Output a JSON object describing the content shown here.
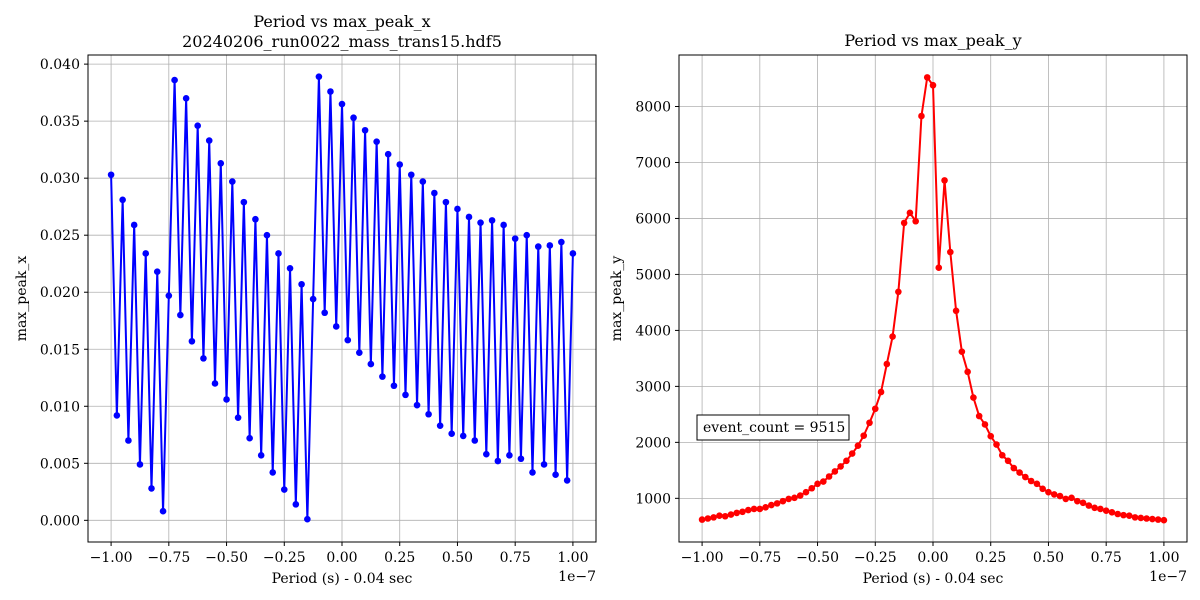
{
  "chart_data": [
    {
      "type": "line",
      "title": "Period vs max_peak_x\n20240206_run0022_mass_trans15.hdf5",
      "xlabel": "Period (s) - 0.04 sec",
      "ylabel": "max_peak_x",
      "x_offset_label": "1e−7",
      "xlim": [
        -1.1,
        1.1
      ],
      "ylim": [
        -0.0019,
        0.0408
      ],
      "grid": true,
      "color": "#0000ff",
      "x_ticks": [
        -1.0,
        -0.75,
        -0.5,
        -0.25,
        0.0,
        0.25,
        0.5,
        0.75,
        1.0
      ],
      "x_tick_labels": [
        "−1.00",
        "−0.75",
        "−0.50",
        "−0.25",
        "0.00",
        "0.25",
        "0.50",
        "0.75",
        "1.00"
      ],
      "y_ticks": [
        0.0,
        0.005,
        0.01,
        0.015,
        0.02,
        0.025,
        0.03,
        0.035,
        0.04
      ],
      "y_tick_labels": [
        "0.000",
        "0.005",
        "0.010",
        "0.015",
        "0.020",
        "0.025",
        "0.030",
        "0.035",
        "0.040"
      ],
      "x": [
        -1.0,
        -0.975,
        -0.95,
        -0.925,
        -0.9,
        -0.875,
        -0.85,
        -0.825,
        -0.8,
        -0.775,
        -0.75,
        -0.725,
        -0.7,
        -0.675,
        -0.65,
        -0.625,
        -0.6,
        -0.575,
        -0.55,
        -0.525,
        -0.5,
        -0.475,
        -0.45,
        -0.425,
        -0.4,
        -0.375,
        -0.35,
        -0.325,
        -0.3,
        -0.275,
        -0.25,
        -0.225,
        -0.2,
        -0.175,
        -0.15,
        -0.125,
        -0.1,
        -0.075,
        -0.05,
        -0.025,
        0.0,
        0.025,
        0.05,
        0.075,
        0.1,
        0.125,
        0.15,
        0.175,
        0.2,
        0.225,
        0.25,
        0.275,
        0.3,
        0.325,
        0.35,
        0.375,
        0.4,
        0.425,
        0.45,
        0.475,
        0.5,
        0.525,
        0.55,
        0.575,
        0.6,
        0.625,
        0.65,
        0.675,
        0.7,
        0.725,
        0.75,
        0.775,
        0.8,
        0.825,
        0.85,
        0.875,
        0.9,
        0.925,
        0.95,
        0.975,
        1.0
      ],
      "values": [
        0.0303,
        0.0092,
        0.0281,
        0.007,
        0.0259,
        0.0049,
        0.0234,
        0.0028,
        0.0218,
        0.0008,
        0.0197,
        0.0386,
        0.018,
        0.037,
        0.0157,
        0.0346,
        0.0142,
        0.0333,
        0.012,
        0.0313,
        0.0106,
        0.0297,
        0.009,
        0.0279,
        0.0072,
        0.0264,
        0.0057,
        0.025,
        0.0042,
        0.0234,
        0.0027,
        0.0221,
        0.0014,
        0.0207,
        0.0001,
        0.0194,
        0.0389,
        0.0182,
        0.0376,
        0.017,
        0.0365,
        0.0158,
        0.0353,
        0.0147,
        0.0342,
        0.0137,
        0.0332,
        0.0126,
        0.0321,
        0.0118,
        0.0312,
        0.011,
        0.0303,
        0.0101,
        0.0297,
        0.0093,
        0.0287,
        0.0083,
        0.0279,
        0.0076,
        0.0273,
        0.0074,
        0.0266,
        0.007,
        0.0261,
        0.0058,
        0.0263,
        0.0052,
        0.0259,
        0.0057,
        0.0247,
        0.0054,
        0.025,
        0.0042,
        0.024,
        0.0049,
        0.0241,
        0.004,
        0.0244,
        0.0035,
        0.0234
      ]
    },
    {
      "type": "line",
      "title": "Period vs max_peak_y",
      "xlabel": "Period (s) - 0.04 sec",
      "ylabel": "max_peak_y",
      "x_offset_label": "1e−7",
      "xlim": [
        -1.1,
        1.1
      ],
      "ylim": [
        220,
        8920
      ],
      "grid": true,
      "color": "#ff0000",
      "annotation": "event_count = 9515",
      "x_ticks": [
        -1.0,
        -0.75,
        -0.5,
        -0.25,
        0.0,
        0.25,
        0.5,
        0.75,
        1.0
      ],
      "x_tick_labels": [
        "−1.00",
        "−0.75",
        "−0.50",
        "−0.25",
        "0.00",
        "0.25",
        "0.50",
        "0.75",
        "1.00"
      ],
      "y_ticks": [
        1000,
        2000,
        3000,
        4000,
        5000,
        6000,
        7000,
        8000
      ],
      "y_tick_labels": [
        "1000",
        "2000",
        "3000",
        "4000",
        "5000",
        "6000",
        "7000",
        "8000"
      ],
      "x": [
        -1.0,
        -0.975,
        -0.95,
        -0.925,
        -0.9,
        -0.875,
        -0.85,
        -0.825,
        -0.8,
        -0.775,
        -0.75,
        -0.725,
        -0.7,
        -0.675,
        -0.65,
        -0.625,
        -0.6,
        -0.575,
        -0.55,
        -0.525,
        -0.5,
        -0.475,
        -0.45,
        -0.425,
        -0.4,
        -0.375,
        -0.35,
        -0.325,
        -0.3,
        -0.275,
        -0.25,
        -0.225,
        -0.2,
        -0.175,
        -0.15,
        -0.125,
        -0.1,
        -0.075,
        -0.05,
        -0.025,
        0.0,
        0.025,
        0.05,
        0.075,
        0.1,
        0.125,
        0.15,
        0.175,
        0.2,
        0.225,
        0.25,
        0.275,
        0.3,
        0.325,
        0.35,
        0.375,
        0.4,
        0.425,
        0.45,
        0.475,
        0.5,
        0.525,
        0.55,
        0.575,
        0.6,
        0.625,
        0.65,
        0.675,
        0.7,
        0.725,
        0.75,
        0.775,
        0.8,
        0.825,
        0.85,
        0.875,
        0.9,
        0.925,
        0.95,
        0.975,
        1.0
      ],
      "values": [
        620,
        640,
        660,
        690,
        680,
        710,
        740,
        760,
        790,
        810,
        810,
        840,
        880,
        910,
        950,
        990,
        1010,
        1050,
        1110,
        1180,
        1260,
        1300,
        1390,
        1480,
        1570,
        1670,
        1800,
        1940,
        2120,
        2350,
        2600,
        2900,
        3400,
        3890,
        4690,
        5920,
        6100,
        5950,
        7830,
        8520,
        8380,
        5120,
        6680,
        5400,
        4350,
        3620,
        3260,
        2800,
        2470,
        2320,
        2110,
        1960,
        1770,
        1670,
        1540,
        1460,
        1380,
        1310,
        1260,
        1170,
        1110,
        1070,
        1040,
        990,
        1010,
        950,
        920,
        870,
        830,
        810,
        780,
        750,
        720,
        700,
        690,
        660,
        650,
        640,
        630,
        620,
        610
      ]
    }
  ]
}
